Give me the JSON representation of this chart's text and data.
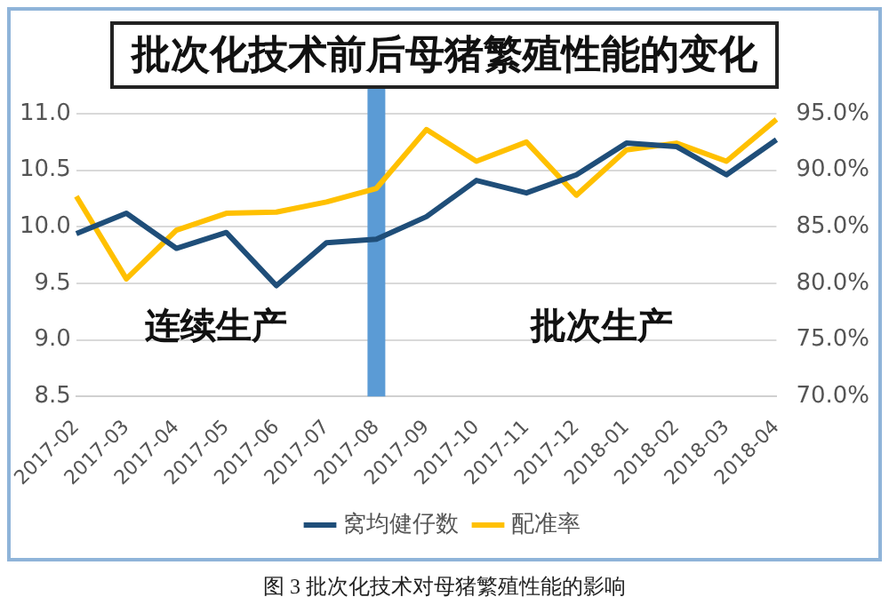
{
  "chart_data": {
    "type": "line",
    "title": "批次化技术前后母猪繁殖性能的变化",
    "categories": [
      "2017-02",
      "2017-03",
      "2017-04",
      "2017-05",
      "2017-06",
      "2017-07",
      "2017-08",
      "2017-09",
      "2017-10",
      "2017-11",
      "2017-12",
      "2018-01",
      "2018-02",
      "2018-03",
      "2018-04"
    ],
    "series": [
      {
        "name": "窝均健仔数",
        "color": "#1f4e79",
        "values": [
          9.94,
          10.12,
          9.81,
          9.95,
          9.48,
          9.86,
          9.89,
          10.09,
          10.41,
          10.3,
          10.46,
          10.74,
          10.71,
          10.46,
          10.77
        ]
      },
      {
        "name": "配准率",
        "color": "#ffc000",
        "axis": "y2",
        "values": [
          87.7,
          80.4,
          84.7,
          86.2,
          86.3,
          87.2,
          88.4,
          93.6,
          90.8,
          92.5,
          87.8,
          91.8,
          92.4,
          90.8,
          94.5
        ]
      }
    ],
    "ylim": [
      8.5,
      11
    ],
    "yticks": [
      8.5,
      {
        "value": 9,
        "label": "9.0"
      },
      9.5,
      {
        "value": 10,
        "label": "10.0"
      },
      10.5,
      {
        "value": 11,
        "label": "11.0"
      }
    ],
    "y2lim": [
      70,
      95
    ],
    "y2ticks": [
      {
        "value": 70,
        "label": "70.0%"
      },
      {
        "value": 75,
        "label": "75.0%"
      },
      {
        "value": 80,
        "label": "80.0%"
      },
      {
        "value": 85,
        "label": "85.0%"
      },
      {
        "value": 90,
        "label": "90.0%"
      },
      {
        "value": 95,
        "label": "95.0%"
      }
    ],
    "ref_lines": [
      {
        "axis": "x",
        "value": "2017-08",
        "color": "#5b9bd5"
      }
    ],
    "grid": "y",
    "legend": "bottom",
    "marker": "none",
    "line_style": "solid",
    "annotations": [
      "连续生产",
      "批次生产",
      "图 3 批次化技术对母猪繁殖性能的影响"
    ]
  }
}
